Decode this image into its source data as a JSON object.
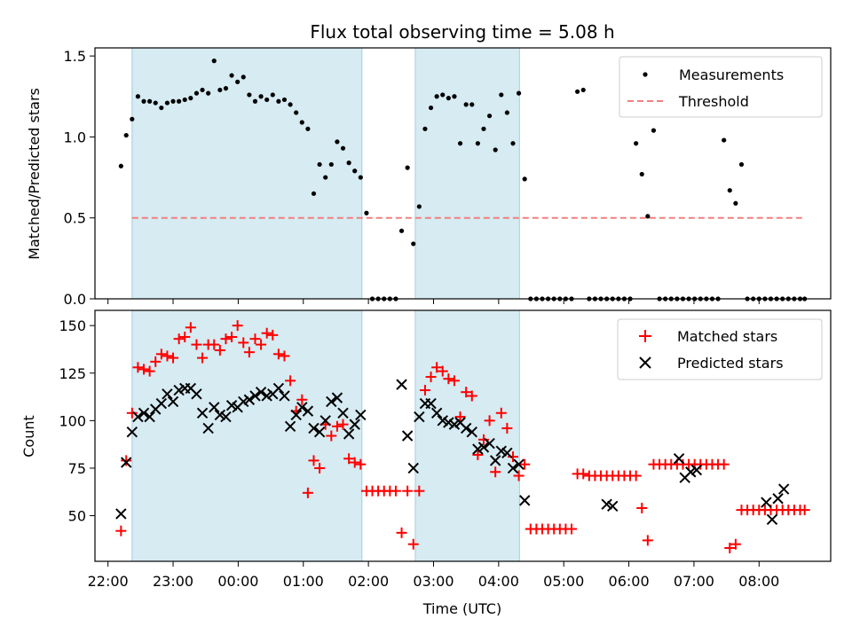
{
  "chart_data": [
    {
      "type": "scatter",
      "title": "Flux total observing time = 5.08 h",
      "xlabel": "",
      "ylabel": "Matched/Predicted stars",
      "xlim": [
        -0.4,
        10.9
      ],
      "ylim": [
        0,
        1.55
      ],
      "yticks": [
        0,
        0.5,
        1.0,
        1.5
      ],
      "ytick_labels": [
        "0.0",
        "0.5",
        "1.0",
        "1.5"
      ],
      "legend_position": "top-right",
      "shaded_intervals": [
        [
          0.17,
          3.7
        ],
        [
          4.52,
          6.12
        ]
      ],
      "colors": {
        "measurements": "#000000",
        "threshold": "#f08080",
        "shade": "#add8e6"
      },
      "threshold": {
        "name": "Threshold",
        "value": 0.5,
        "x_range": [
          0.17,
          10.5
        ]
      },
      "series": [
        {
          "name": "Measurements",
          "marker": "dot",
          "x": [
            0.0,
            0.08,
            0.17,
            0.26,
            0.35,
            0.44,
            0.53,
            0.62,
            0.71,
            0.8,
            0.89,
            0.98,
            1.07,
            1.16,
            1.25,
            1.34,
            1.43,
            1.52,
            1.61,
            1.7,
            1.79,
            1.88,
            1.97,
            2.06,
            2.15,
            2.24,
            2.33,
            2.42,
            2.51,
            2.6,
            2.69,
            2.78,
            2.87,
            2.96,
            3.05,
            3.14,
            3.23,
            3.32,
            3.41,
            3.5,
            3.59,
            3.68,
            3.77,
            3.86,
            3.95,
            4.04,
            4.13,
            4.22,
            4.31,
            4.4,
            4.49,
            4.58,
            4.67,
            4.76,
            4.85,
            4.94,
            5.03,
            5.12,
            5.21,
            5.3,
            5.39,
            5.48,
            5.57,
            5.66,
            5.75,
            5.84,
            5.93,
            6.02,
            6.11,
            6.2,
            6.29,
            6.38,
            6.47,
            6.56,
            6.65,
            6.74,
            6.83,
            6.92,
            7.01,
            7.1,
            7.19,
            7.28,
            7.37,
            7.46,
            7.55,
            7.64,
            7.73,
            7.82,
            7.91,
            8.0,
            8.09,
            8.18,
            8.27,
            8.36,
            8.45,
            8.54,
            8.63,
            8.72,
            8.81,
            8.9,
            8.99,
            9.08,
            9.17,
            9.26,
            9.35,
            9.44,
            9.53,
            9.62,
            9.71,
            9.8,
            9.89,
            9.98,
            10.07,
            10.16,
            10.25,
            10.34,
            10.43,
            10.5
          ],
          "y": [
            0.82,
            1.01,
            1.11,
            1.25,
            1.22,
            1.22,
            1.21,
            1.18,
            1.21,
            1.22,
            1.22,
            1.23,
            1.24,
            1.27,
            1.29,
            1.27,
            1.47,
            1.29,
            1.3,
            1.38,
            1.34,
            1.37,
            1.26,
            1.22,
            1.25,
            1.23,
            1.26,
            1.22,
            1.23,
            1.2,
            1.15,
            1.09,
            1.05,
            0.65,
            0.83,
            0.75,
            0.83,
            0.97,
            0.93,
            0.84,
            0.79,
            0.75,
            0.53,
            0.0,
            0.0,
            0.0,
            0.0,
            0.0,
            0.42,
            0.81,
            0.34,
            0.57,
            1.05,
            1.18,
            1.25,
            1.26,
            1.24,
            1.25,
            0.96,
            1.2,
            1.2,
            0.96,
            1.05,
            1.13,
            0.92,
            1.26,
            1.15,
            0.96,
            1.27,
            0.74,
            0.0,
            0.0,
            0.0,
            0.0,
            0.0,
            0.0,
            0.0,
            0.0,
            1.28,
            1.29,
            0.0,
            0.0,
            0.0,
            0.0,
            0.0,
            0.0,
            0.0,
            0.0,
            0.96,
            0.77,
            0.51,
            1.04,
            0.0,
            0.0,
            0.0,
            0.0,
            0.0,
            0.0,
            0.0,
            0.0,
            0.0,
            0.0,
            0.0,
            0.98,
            0.67,
            0.59,
            0.83,
            0.0,
            0.0,
            0.0,
            0.0,
            0.0,
            0.0,
            0.0,
            0.0,
            0.0,
            0.0,
            0.0
          ]
        }
      ]
    },
    {
      "type": "scatter",
      "title": "",
      "xlabel": "Time (UTC)",
      "ylabel": "Count",
      "xlim": [
        -0.4,
        10.9
      ],
      "ylim": [
        26,
        158
      ],
      "yticks": [
        50,
        75,
        100,
        125,
        150
      ],
      "ytick_labels": [
        "50",
        "75",
        "100",
        "125",
        "150"
      ],
      "xticks": [
        -0.2,
        0.8,
        1.8,
        2.8,
        3.8,
        4.8,
        5.8,
        6.8,
        7.8,
        8.8,
        9.8
      ],
      "xtick_labels": [
        "22:00",
        "23:00",
        "00:00",
        "01:00",
        "02:00",
        "03:00",
        "04:00",
        "05:00",
        "06:00",
        "07:00",
        "08:00"
      ],
      "legend_position": "top-right",
      "shaded_intervals": [
        [
          0.17,
          3.7
        ],
        [
          4.52,
          6.12
        ]
      ],
      "colors": {
        "matched": "#ff0000",
        "predicted": "#000000"
      },
      "series": [
        {
          "name": "Matched stars",
          "marker": "plus",
          "x": [
            0.0,
            0.08,
            0.17,
            0.26,
            0.35,
            0.44,
            0.53,
            0.62,
            0.71,
            0.8,
            0.89,
            0.98,
            1.07,
            1.16,
            1.25,
            1.34,
            1.43,
            1.52,
            1.61,
            1.7,
            1.79,
            1.88,
            1.97,
            2.06,
            2.15,
            2.24,
            2.33,
            2.42,
            2.51,
            2.6,
            2.69,
            2.78,
            2.87,
            2.96,
            3.05,
            3.14,
            3.23,
            3.32,
            3.41,
            3.5,
            3.59,
            3.68,
            3.77,
            3.86,
            3.95,
            4.04,
            4.13,
            4.22,
            4.31,
            4.4,
            4.49,
            4.58,
            4.67,
            4.76,
            4.85,
            4.94,
            5.03,
            5.12,
            5.21,
            5.3,
            5.39,
            5.48,
            5.57,
            5.66,
            5.75,
            5.84,
            5.93,
            6.02,
            6.11,
            6.2,
            6.29,
            6.38,
            6.47,
            6.56,
            6.65,
            6.74,
            6.83,
            6.92,
            7.01,
            7.1,
            7.19,
            7.28,
            7.37,
            7.46,
            7.55,
            7.64,
            7.73,
            7.82,
            7.91,
            8.0,
            8.09,
            8.18,
            8.27,
            8.36,
            8.45,
            8.54,
            8.63,
            8.72,
            8.81,
            8.9,
            8.99,
            9.08,
            9.17,
            9.26,
            9.35,
            9.44,
            9.53,
            9.62,
            9.71,
            9.8,
            9.89,
            9.98,
            10.07,
            10.16,
            10.25,
            10.34,
            10.43,
            10.5
          ],
          "y": [
            42,
            79,
            104,
            128,
            127,
            126,
            131,
            135,
            134,
            133,
            143,
            144,
            149,
            140,
            133,
            140,
            140,
            137,
            143,
            144,
            150,
            141,
            136,
            143,
            140,
            146,
            145,
            135,
            134,
            121,
            105,
            111,
            62,
            79,
            75,
            98,
            92,
            97,
            98,
            80,
            78,
            77,
            63,
            63,
            63,
            63,
            63,
            63,
            41,
            63,
            35,
            63,
            116,
            123,
            128,
            126,
            122,
            121,
            102,
            115,
            113,
            82,
            90,
            100,
            73,
            104,
            96,
            81,
            71,
            77,
            43,
            43,
            43,
            43,
            43,
            43,
            43,
            43,
            72,
            72,
            71,
            71,
            71,
            71,
            71,
            71,
            71,
            71,
            71,
            54,
            37,
            77,
            77,
            77,
            77,
            77,
            77,
            77,
            77,
            77,
            77,
            77,
            77,
            77,
            33,
            35,
            53,
            53,
            53,
            53,
            53,
            53,
            53,
            53,
            53,
            53,
            53,
            53
          ]
        },
        {
          "name": "Predicted stars",
          "marker": "x",
          "x": [
            0.0,
            0.08,
            0.17,
            0.26,
            0.35,
            0.44,
            0.53,
            0.62,
            0.71,
            0.8,
            0.89,
            0.98,
            1.07,
            1.16,
            1.25,
            1.34,
            1.43,
            1.52,
            1.61,
            1.7,
            1.79,
            1.88,
            1.97,
            2.06,
            2.15,
            2.24,
            2.33,
            2.42,
            2.51,
            2.6,
            2.69,
            2.78,
            2.87,
            2.96,
            3.05,
            3.14,
            3.23,
            3.32,
            3.41,
            3.5,
            3.59,
            3.68,
            4.31,
            4.4,
            4.49,
            4.58,
            4.67,
            4.76,
            4.85,
            4.94,
            5.03,
            5.12,
            5.21,
            5.3,
            5.39,
            5.48,
            5.57,
            5.66,
            5.75,
            5.84,
            5.93,
            6.02,
            6.11,
            6.2,
            7.46,
            7.55,
            8.57,
            8.66,
            8.75,
            8.84,
            9.91,
            10.0,
            10.09,
            10.18
          ],
          "y": [
            51,
            78,
            94,
            102,
            104,
            102,
            106,
            109,
            114,
            110,
            116,
            117,
            117,
            114,
            104,
            96,
            107,
            103,
            102,
            108,
            107,
            110,
            111,
            113,
            115,
            113,
            114,
            117,
            113,
            97,
            103,
            107,
            105,
            96,
            94,
            100,
            110,
            112,
            104,
            93,
            98,
            103,
            119,
            92,
            75,
            102,
            109,
            109,
            104,
            100,
            99,
            98,
            99,
            96,
            94,
            85,
            86,
            88,
            79,
            84,
            83,
            75,
            77,
            58,
            56,
            55,
            80,
            70,
            73,
            74,
            57,
            48,
            59,
            64
          ]
        }
      ]
    }
  ]
}
